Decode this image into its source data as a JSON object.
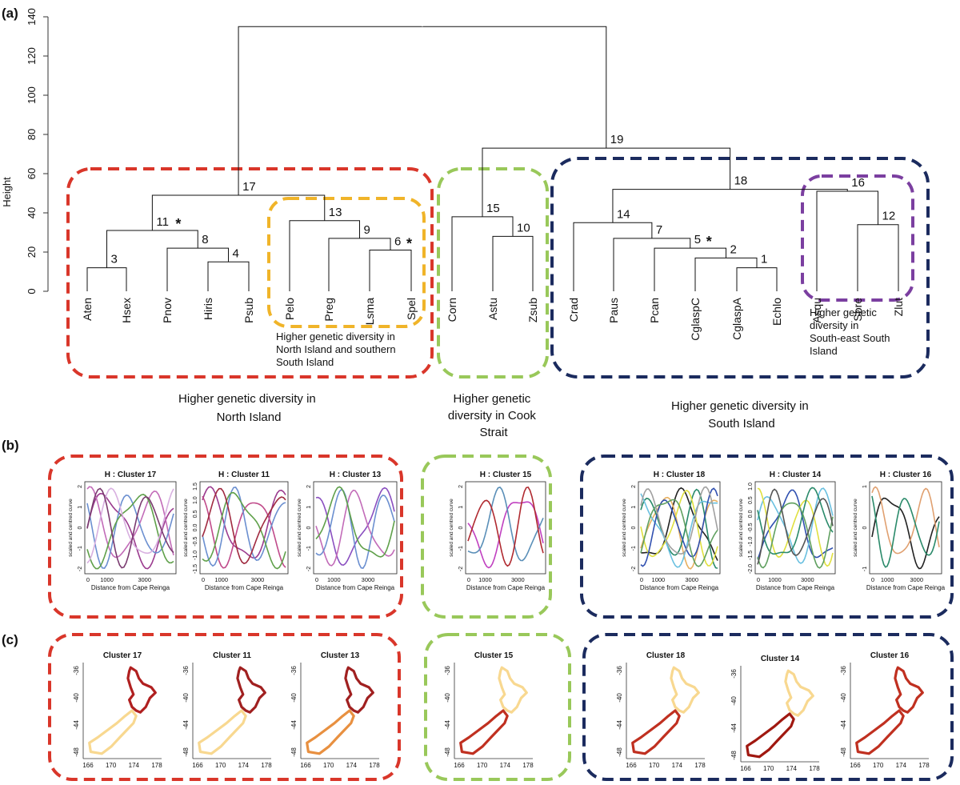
{
  "panels": {
    "a": "(a)",
    "b": "(b)",
    "c": "(c)"
  },
  "dendrogram": {
    "ylabel": "Height",
    "yticks": [
      0,
      20,
      40,
      60,
      80,
      100,
      120,
      140
    ],
    "leaves": [
      "Aten",
      "Hsex",
      "Pnov",
      "Hiris",
      "Psub",
      "Pelo",
      "Preg",
      "Lsma",
      "Spel",
      "Corn",
      "Astu",
      "Zsub",
      "Crad",
      "Paus",
      "Pcan",
      "CglaspC",
      "CglaspA",
      "Echlo",
      "Asqu",
      "Sbre",
      "Zlut"
    ],
    "nodes": [
      {
        "id": "1",
        "height": 12,
        "star": false
      },
      {
        "id": "2",
        "height": 17,
        "star": false
      },
      {
        "id": "3",
        "height": 12,
        "star": false
      },
      {
        "id": "4",
        "height": 15,
        "star": false
      },
      {
        "id": "5",
        "height": 22,
        "star": true
      },
      {
        "id": "6",
        "height": 21,
        "star": true
      },
      {
        "id": "7",
        "height": 27,
        "star": false
      },
      {
        "id": "8",
        "height": 22,
        "star": false
      },
      {
        "id": "9",
        "height": 27,
        "star": false
      },
      {
        "id": "10",
        "height": 28,
        "star": false
      },
      {
        "id": "11",
        "height": 31,
        "star": true
      },
      {
        "id": "12",
        "height": 34,
        "star": false
      },
      {
        "id": "13",
        "height": 36,
        "star": false
      },
      {
        "id": "14",
        "height": 35,
        "star": false
      },
      {
        "id": "15",
        "height": 38,
        "star": false
      },
      {
        "id": "16",
        "height": 51,
        "star": false
      },
      {
        "id": "17",
        "height": 49,
        "star": false
      },
      {
        "id": "18",
        "height": 52,
        "star": false
      },
      {
        "id": "19",
        "height": 73,
        "star": false
      },
      {
        "id": "root",
        "height": 135,
        "star": false
      }
    ],
    "captions": {
      "north_island_south": "Higher genetic diversity in North Island and southern South Island",
      "north_island": "Higher genetic diversity in North Island",
      "cook_strait": "Higher genetic diversity in Cook Strait",
      "south_island": "Higher genetic diversity in South Island",
      "south_east": "Higher genetic diversity in South-east South Island"
    },
    "colors": {
      "red": "#d9362a",
      "orange": "#f0b429",
      "green": "#99c85a",
      "navy": "#1b2b5e",
      "purple": "#7b3fa0"
    }
  },
  "curves": {
    "ylabel": "scaled and centred curve",
    "xlabel": "Distance from Cape Reinga",
    "plots": [
      {
        "title": "H : Cluster 17",
        "xticks": [
          "0",
          "1000",
          "3000"
        ],
        "yticks": [
          "2",
          "1",
          "0",
          "-1",
          "-2"
        ],
        "colors": [
          "#9b3b8f",
          "#c26bb8",
          "#6b8fd0",
          "#5fa04a",
          "#d8b0e0",
          "#7a3b70"
        ]
      },
      {
        "title": "H : Cluster 11",
        "xticks": [
          "0",
          "1000",
          "3000"
        ],
        "yticks": [
          "1.5",
          "1.0",
          "0.5",
          "0.0",
          "-0.5",
          "-1.0",
          "-1.5"
        ],
        "colors": [
          "#9b3b8f",
          "#c04a8a",
          "#6b8fd0",
          "#5fa04a",
          "#a02a40"
        ]
      },
      {
        "title": "H : Cluster 13",
        "xticks": [
          "0",
          "1000",
          "3000"
        ],
        "yticks": [
          "2",
          "1",
          "0",
          "-1",
          "-2"
        ],
        "colors": [
          "#8a4fc0",
          "#c26bb8",
          "#6b8fd0",
          "#5fa04a"
        ]
      },
      {
        "title": "H : Cluster 15",
        "xticks": [
          "0",
          "1000",
          "3000"
        ],
        "yticks": [
          "2",
          "1",
          "0",
          "-1",
          "-2"
        ],
        "colors": [
          "#c040c0",
          "#5a8fb8",
          "#b02a30"
        ]
      },
      {
        "title": "H : Cluster 18",
        "xticks": [
          "0",
          "1000",
          "3000"
        ],
        "yticks": [
          "2",
          "1",
          "0",
          "-1",
          "-2"
        ],
        "colors": [
          "#222222",
          "#e8b060",
          "#2a8a6a",
          "#6ac0e0",
          "#e0e040",
          "#3050b0",
          "#60a060",
          "#a0a0a0"
        ]
      },
      {
        "title": "H : Cluster 14",
        "xticks": [
          "0",
          "1000",
          "3000"
        ],
        "yticks": [
          "1.0",
          "0.5",
          "0.0",
          "-0.5",
          "-1.0",
          "-1.5",
          "-2.0"
        ],
        "colors": [
          "#3050b0",
          "#6ac0e0",
          "#e0e040",
          "#2a8a6a",
          "#60a060",
          "#555555"
        ]
      },
      {
        "title": "H : Cluster 16",
        "xticks": [
          "0",
          "1000",
          "3000"
        ],
        "yticks": [
          "1",
          "0",
          "-1"
        ],
        "colors": [
          "#222222",
          "#e0a070",
          "#2a8a6a"
        ]
      }
    ]
  },
  "maps": {
    "xticks": [
      "166",
      "170",
      "174",
      "178"
    ],
    "yticks": [
      "-36",
      "-40",
      "-44",
      "-48"
    ],
    "plots": [
      {
        "title": "Cluster 17",
        "north": "#b02020",
        "south": "#f8d890"
      },
      {
        "title": "Cluster 11",
        "north": "#a02020",
        "south": "#f8d890"
      },
      {
        "title": "Cluster 13",
        "north": "#a02020",
        "south": "#e89040"
      },
      {
        "title": "Cluster 15",
        "north": "#f8d890",
        "south": "#c03020"
      },
      {
        "title": "Cluster 18",
        "north": "#f8d890",
        "south": "#c03020"
      },
      {
        "title": "Cluster 14",
        "north": "#f8d890",
        "south": "#a01810"
      },
      {
        "title": "Cluster 16",
        "north": "#c03020",
        "south": "#c03020"
      }
    ]
  },
  "chart_data": [
    {
      "type": "dendrogram",
      "ylabel": "Height",
      "ylim": [
        0,
        140
      ],
      "leaves": [
        "Aten",
        "Hsex",
        "Pnov",
        "Hiris",
        "Psub",
        "Pelo",
        "Preg",
        "Lsma",
        "Spel",
        "Corn",
        "Astu",
        "Zsub",
        "Crad",
        "Paus",
        "Pcan",
        "CglaspC",
        "CglaspA",
        "Echlo",
        "Asqu",
        "Sbre",
        "Zlut"
      ],
      "merges": [
        {
          "node": "3",
          "children": [
            "Aten",
            "Hsex"
          ],
          "height": 12
        },
        {
          "node": "4",
          "children": [
            "Hiris",
            "Psub"
          ],
          "height": 15
        },
        {
          "node": "8",
          "children": [
            "Pnov",
            "4"
          ],
          "height": 22
        },
        {
          "node": "11",
          "children": [
            "3",
            "8"
          ],
          "height": 31
        },
        {
          "node": "6",
          "children": [
            "Lsma",
            "Spel"
          ],
          "height": 21
        },
        {
          "node": "9",
          "children": [
            "Preg",
            "6"
          ],
          "height": 27
        },
        {
          "node": "13",
          "children": [
            "Pelo",
            "9"
          ],
          "height": 36
        },
        {
          "node": "17",
          "children": [
            "11",
            "13"
          ],
          "height": 49
        },
        {
          "node": "10",
          "children": [
            "Astu",
            "Zsub"
          ],
          "height": 28
        },
        {
          "node": "15",
          "children": [
            "Corn",
            "10"
          ],
          "height": 38
        },
        {
          "node": "1",
          "children": [
            "CglaspA",
            "Echlo"
          ],
          "height": 12
        },
        {
          "node": "2",
          "children": [
            "CglaspC",
            "1"
          ],
          "height": 17
        },
        {
          "node": "5",
          "children": [
            "Pcan",
            "2"
          ],
          "height": 22
        },
        {
          "node": "7",
          "children": [
            "Paus",
            "5"
          ],
          "height": 27
        },
        {
          "node": "14",
          "children": [
            "Crad",
            "7"
          ],
          "height": 35
        },
        {
          "node": "12",
          "children": [
            "Sbre",
            "Zlut"
          ],
          "height": 34
        },
        {
          "node": "16",
          "children": [
            "Asqu",
            "12"
          ],
          "height": 51
        },
        {
          "node": "18",
          "children": [
            "14",
            "16"
          ],
          "height": 52
        },
        {
          "node": "19",
          "children": [
            "15",
            "18"
          ],
          "height": 73
        },
        {
          "node": "root",
          "children": [
            "17",
            "19"
          ],
          "height": 135
        }
      ]
    },
    {
      "type": "line",
      "title": "H : Cluster 17",
      "xlabel": "Distance from Cape Reinga",
      "ylabel": "scaled and centred curve",
      "xlim": [
        0,
        4500
      ],
      "ylim": [
        -2,
        2
      ]
    },
    {
      "type": "line",
      "title": "H : Cluster 11",
      "xlabel": "Distance from Cape Reinga",
      "ylabel": "scaled and centred curve",
      "xlim": [
        0,
        4500
      ],
      "ylim": [
        -1.5,
        1.5
      ]
    },
    {
      "type": "line",
      "title": "H : Cluster 13",
      "xlabel": "Distance from Cape Reinga",
      "ylabel": "scaled and centred curve",
      "xlim": [
        0,
        4500
      ],
      "ylim": [
        -2,
        2
      ]
    },
    {
      "type": "line",
      "title": "H : Cluster 15",
      "xlabel": "Distance from Cape Reinga",
      "ylabel": "scaled and centred curve",
      "xlim": [
        0,
        4500
      ],
      "ylim": [
        -2,
        2
      ]
    },
    {
      "type": "line",
      "title": "H : Cluster 18",
      "xlabel": "Distance from Cape Reinga",
      "ylabel": "scaled and centred curve",
      "xlim": [
        0,
        4500
      ],
      "ylim": [
        -2,
        2
      ]
    },
    {
      "type": "line",
      "title": "H : Cluster 14",
      "xlabel": "Distance from Cape Reinga",
      "ylabel": "scaled and centred curve",
      "xlim": [
        0,
        4500
      ],
      "ylim": [
        -2,
        1.2
      ]
    },
    {
      "type": "line",
      "title": "H : Cluster 16",
      "xlabel": "Distance from Cape Reinga",
      "ylabel": "scaled and centred curve",
      "xlim": [
        0,
        4500
      ],
      "ylim": [
        -1.6,
        1.6
      ]
    },
    {
      "type": "map",
      "title": "Cluster 17",
      "xlim": [
        166,
        178
      ],
      "ylim": [
        -48,
        -34
      ]
    },
    {
      "type": "map",
      "title": "Cluster 11",
      "xlim": [
        166,
        178
      ],
      "ylim": [
        -48,
        -34
      ]
    },
    {
      "type": "map",
      "title": "Cluster 13",
      "xlim": [
        166,
        178
      ],
      "ylim": [
        -48,
        -34
      ]
    },
    {
      "type": "map",
      "title": "Cluster 15",
      "xlim": [
        166,
        178
      ],
      "ylim": [
        -48,
        -34
      ]
    },
    {
      "type": "map",
      "title": "Cluster 18",
      "xlim": [
        166,
        178
      ],
      "ylim": [
        -48,
        -34
      ]
    },
    {
      "type": "map",
      "title": "Cluster 14",
      "xlim": [
        166,
        178
      ],
      "ylim": [
        -48,
        -34
      ]
    },
    {
      "type": "map",
      "title": "Cluster 16",
      "xlim": [
        166,
        178
      ],
      "ylim": [
        -48,
        -34
      ]
    }
  ]
}
